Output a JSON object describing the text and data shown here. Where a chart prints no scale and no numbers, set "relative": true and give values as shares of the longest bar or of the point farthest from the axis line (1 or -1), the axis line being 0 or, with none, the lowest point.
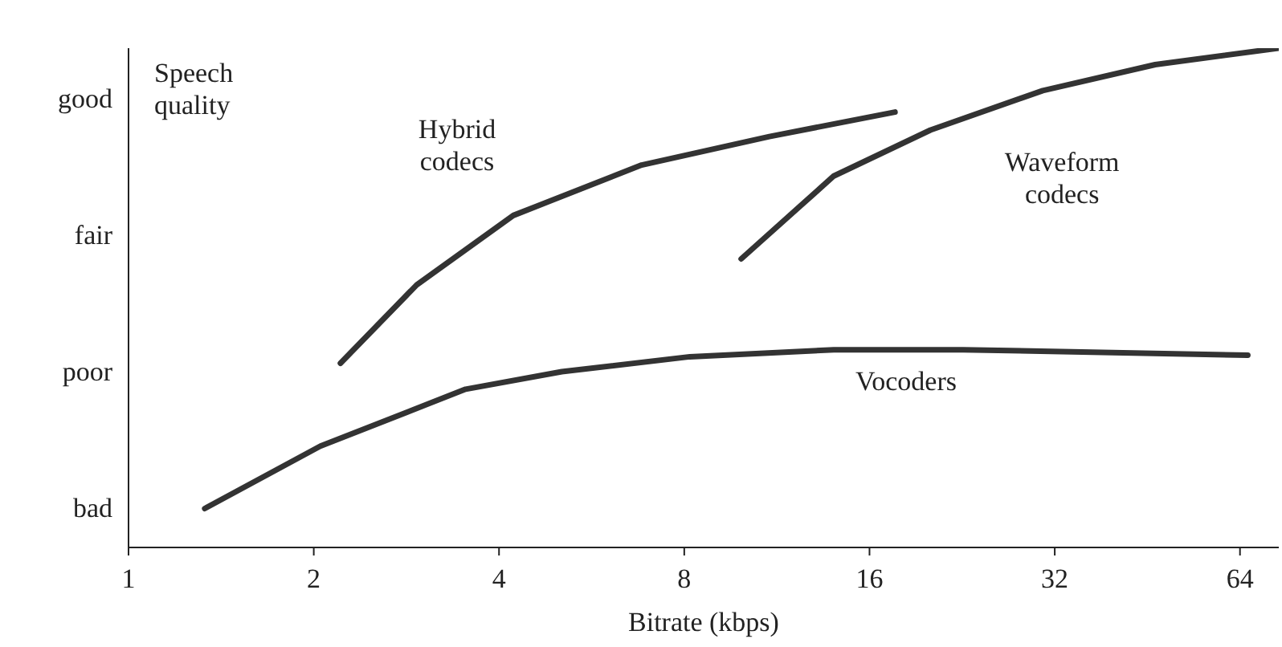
{
  "chart_data": {
    "type": "line",
    "xlabel": "Bitrate (kbps)",
    "ylabel": "Speech quality",
    "relative": true,
    "y_categories": [
      "good",
      "fair",
      "poor",
      "bad"
    ],
    "log": "x",
    "xlim": [
      1,
      74
    ],
    "xticks": [
      1,
      2,
      4,
      8,
      16,
      32,
      64
    ],
    "grid": false,
    "legend": false,
    "marker": "none",
    "line_style": "solid",
    "series": [
      {
        "name": "Hybrid codecs",
        "color": "#333333",
        "x": [
          2.21,
          2.94,
          4.22,
          6.82,
          11.0,
          17.6
        ],
        "values": [
          0.369,
          0.526,
          0.665,
          0.766,
          0.823,
          0.872
        ]
      },
      {
        "name": "Waveform codecs",
        "color": "#333333",
        "x": [
          9.9,
          14.0,
          20.1,
          30.6,
          46.6,
          74
        ],
        "values": [
          0.578,
          0.744,
          0.836,
          0.915,
          0.967,
          1.0
        ]
      },
      {
        "name": "Vocoders",
        "color": "#333333",
        "x": [
          1.33,
          2.05,
          3.53,
          5.06,
          8.17,
          14.0,
          22.7,
          41.3,
          65.9
        ],
        "values": [
          0.078,
          0.203,
          0.317,
          0.352,
          0.382,
          0.396,
          0.396,
          0.39,
          0.385
        ]
      }
    ]
  }
}
